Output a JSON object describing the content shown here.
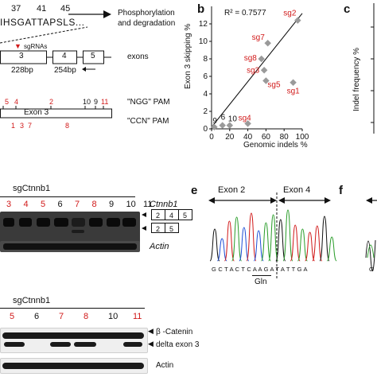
{
  "top_left": {
    "residue_numbers": [
      "37",
      "41",
      "45"
    ],
    "sequence": "IHSGATTAPSLS...",
    "arrow_text_1": "Phosphorylation",
    "arrow_text_2": "and degradation",
    "sgrna_label": "sgRNAs",
    "exon_numbers": [
      "3",
      "4",
      "5"
    ],
    "exons_label": "exons",
    "bp_3": "228bp",
    "bp_4": "254bp",
    "ngg_numbers": [
      "5",
      "4",
      "2",
      "10",
      "9",
      "11"
    ],
    "ngg_label": "\"NGG\" PAM",
    "exon3_label": "Exon 3",
    "ccn_numbers": [
      "1",
      "3",
      "7",
      "8"
    ],
    "ccn_label": "\"CCN\" PAM"
  },
  "panel_b": {
    "letter": "b",
    "r2": "R² = 0.7577"
  },
  "panel_c": {
    "letter": "c",
    "ylabel": "Indel frequency %"
  },
  "gel_panel": {
    "title": "sgCtnnb1",
    "lanes": [
      "3",
      "4",
      "5",
      "6",
      "7",
      "8",
      "9",
      "10",
      "11"
    ],
    "lane_red": [
      true,
      true,
      true,
      false,
      true,
      true,
      false,
      false,
      false
    ],
    "gene_label": "Ctnnb1",
    "full_exons": [
      "2",
      "4",
      "5"
    ],
    "short_exons": [
      "2",
      "5"
    ],
    "actin_label": "Actin"
  },
  "panel_e": {
    "letter": "e",
    "exon2": "Exon 2",
    "exon4": "Exon 4",
    "bases": "G C T A C T C A A G A T A T T G A",
    "gln": "Gln"
  },
  "panel_f": {
    "letter": "f"
  },
  "western": {
    "title": "sgCtnnb1",
    "lanes": [
      "5",
      "6",
      "7",
      "8",
      "10",
      "11"
    ],
    "lane_red": [
      true,
      false,
      true,
      true,
      false,
      true
    ],
    "label_catenin": "β -Catenin",
    "label_delta": "delta exon 3",
    "label_actin": "Actin"
  },
  "chart_data": {
    "type": "scatter",
    "xlabel": "Genomic indels %",
    "ylabel": "Exon 3 skipping %",
    "xlim": [
      0,
      100
    ],
    "ylim": [
      0,
      14
    ],
    "xticks": [
      0,
      20,
      40,
      60,
      80,
      100
    ],
    "yticks": [
      0,
      2,
      4,
      6,
      8,
      10,
      12
    ],
    "annotation": "R² = 0.7577",
    "trendline": {
      "x": [
        0,
        100
      ],
      "y": [
        0.2,
        13.2
      ]
    },
    "points": [
      {
        "label": "sg2",
        "x": 95,
        "y": 12.4
      },
      {
        "label": "sg7",
        "x": 62,
        "y": 9.8
      },
      {
        "label": "sg8",
        "x": 55,
        "y": 8.0
      },
      {
        "label": "sg3",
        "x": 58,
        "y": 6.7
      },
      {
        "label": "sg5",
        "x": 60,
        "y": 5.5
      },
      {
        "label": "sg1",
        "x": 90,
        "y": 5.3
      },
      {
        "label": "sg4",
        "x": 40,
        "y": 0.6
      },
      {
        "label": "9",
        "x": 3,
        "y": 0.2
      },
      {
        "label": "6",
        "x": 12,
        "y": 0.4
      },
      {
        "label": "10",
        "x": 20,
        "y": 0.4
      }
    ],
    "red_labels": [
      "sg2",
      "sg7",
      "sg8",
      "sg3",
      "sg5",
      "sg1",
      "sg4"
    ]
  }
}
